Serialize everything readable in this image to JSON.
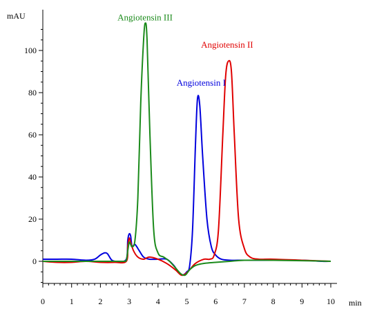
{
  "chart_data": {
    "type": "line",
    "title": "",
    "xlabel": "min",
    "ylabel": "mAU",
    "xlim": [
      0,
      10
    ],
    "ylim": [
      -13,
      115
    ],
    "x_ticks": [
      0,
      1,
      2,
      3,
      4,
      5,
      6,
      7,
      8,
      9,
      10
    ],
    "y_ticks": [
      0,
      20,
      40,
      60,
      80,
      100
    ],
    "grid": false,
    "legend": "none",
    "annotations": [
      {
        "text": "Angiotensin III",
        "color": "#1a8a1a",
        "x": 3.55,
        "y": 113
      },
      {
        "text": "Angiotensin II",
        "color": "#e00000",
        "x": 6.4,
        "y": 100
      },
      {
        "text": "Angiotensin I",
        "color": "#0000dd",
        "x": 5.5,
        "y": 82
      }
    ],
    "series": [
      {
        "color": "#0000dd",
        "x": [
          0,
          0.5,
          1.0,
          1.5,
          1.8,
          2.0,
          2.15,
          2.25,
          2.4,
          2.6,
          2.9,
          2.95,
          3.0,
          3.05,
          3.1,
          3.2,
          3.35,
          3.5,
          3.7,
          4.0,
          4.3,
          4.55,
          4.7,
          4.85,
          5.0,
          5.1,
          5.2,
          5.3,
          5.37,
          5.45,
          5.55,
          5.7,
          5.85,
          6.0,
          6.2,
          6.5,
          7.0,
          8.0,
          9.0,
          9.7,
          10
        ],
        "y": [
          1,
          1,
          1,
          0.5,
          1,
          3,
          4,
          3.5,
          0.5,
          0,
          1,
          10,
          13,
          12,
          7,
          8,
          5,
          2,
          1,
          1,
          1,
          -2,
          -5,
          -6.5,
          -5,
          -2,
          15,
          55,
          77,
          74,
          50,
          20,
          7,
          3,
          1,
          0.5,
          0.5,
          0.5,
          0.5,
          0,
          0
        ]
      },
      {
        "color": "#e00000",
        "x": [
          0,
          0.5,
          1.0,
          1.5,
          2.0,
          2.5,
          2.9,
          2.95,
          3.0,
          3.05,
          3.15,
          3.3,
          3.5,
          3.7,
          4.0,
          4.3,
          4.6,
          4.8,
          4.95,
          5.1,
          5.3,
          5.6,
          5.8,
          5.95,
          6.1,
          6.25,
          6.35,
          6.45,
          6.55,
          6.65,
          6.8,
          7.0,
          7.2,
          7.5,
          8.0,
          9.0,
          10
        ],
        "y": [
          0,
          -0.5,
          -0.5,
          0,
          -0.5,
          -0.5,
          0,
          7,
          11,
          9,
          5,
          2,
          1,
          2,
          1,
          -1,
          -4,
          -6.5,
          -6,
          -4,
          -1,
          1,
          1,
          3,
          15,
          60,
          88,
          95,
          90,
          60,
          20,
          6,
          2,
          1,
          1,
          0.5,
          0
        ]
      },
      {
        "color": "#1a8a1a",
        "x": [
          0,
          0.5,
          1.0,
          1.5,
          2.0,
          2.5,
          2.8,
          2.9,
          2.95,
          3.0,
          3.05,
          3.1,
          3.2,
          3.3,
          3.4,
          3.5,
          3.56,
          3.62,
          3.72,
          3.85,
          4.0,
          4.2,
          4.4,
          4.6,
          4.8,
          4.95,
          5.1,
          5.3,
          5.6,
          6.0,
          6.5,
          7.0,
          8.0,
          9.0,
          10
        ],
        "y": [
          0,
          0,
          0,
          0,
          0,
          0,
          0,
          0.5,
          5,
          9,
          8,
          7,
          10,
          30,
          75,
          105,
          113,
          105,
          60,
          15,
          4,
          2,
          0,
          -3,
          -6,
          -6.5,
          -4,
          -2,
          -1,
          -0.5,
          0,
          0.5,
          0.5,
          0.3,
          0
        ]
      }
    ]
  }
}
